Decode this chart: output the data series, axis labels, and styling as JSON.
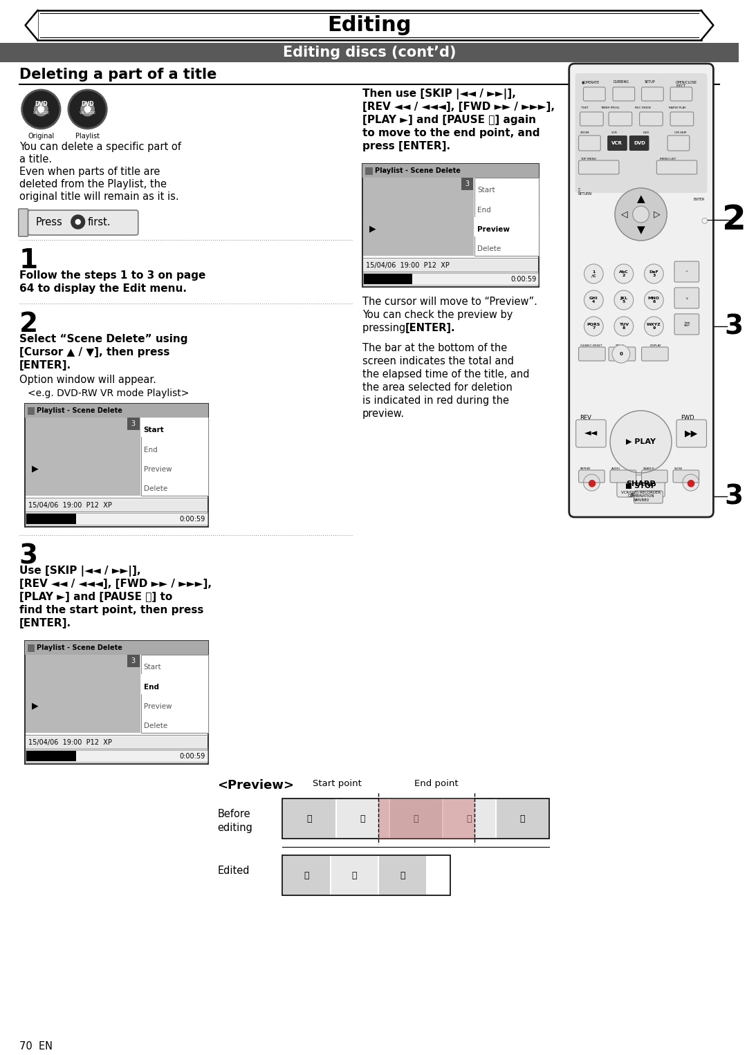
{
  "title": "Editing",
  "subtitle": "Editing discs (cont’d)",
  "section_title": "Deleting a part of a title",
  "bg_color": "#ffffff",
  "header_bg": "#595959",
  "header_text_color": "#ffffff",
  "body_text_color": "#000000",
  "intro_text_lines": [
    "You can delete a specific part of",
    "a title.",
    "Even when parts of title are",
    "deleted from the Playlist, the",
    "original title will remain as it is."
  ],
  "step1_bold_lines": [
    "Follow the steps 1 to 3 on page",
    "64 to display the Edit menu."
  ],
  "step2_bold_lines": [
    "Select “Scene Delete” using",
    "[Cursor ▲ / ▼], then press",
    "[ENTER]."
  ],
  "step2_normal": "Option window will appear.",
  "step2_eg": "<e.g. DVD-RW VR mode Playlist>",
  "step3_bold_lines": [
    "Use [SKIP |◄◄ / ►►|],",
    "[REV ◄◄ / ◄◄◄], [FWD ►► / ►►►],",
    "[PLAY ►] and [PAUSE ⏸] to",
    "find the start point, then press",
    "[ENTER]."
  ],
  "right_inst_bold_lines": [
    "Then use [SKIP |◄◄ / ►►|],",
    "[REV ◄◄ / ◄◄◄], [FWD ►► / ►►►],",
    "[PLAY ►] and [PAUSE ⏸] again",
    "to move to the end point, and",
    "press [ENTER]."
  ],
  "cursor_text_lines": [
    "The cursor will move to “Preview”.",
    "You can check the preview by",
    "pressing [ENTER]."
  ],
  "cursor_enter_bold": "[ENTER].",
  "bar_text_lines": [
    "The bar at the bottom of the",
    "screen indicates the total and",
    "the elapsed time of the title, and",
    "the area selected for deletion",
    "is indicated in red during the",
    "preview."
  ],
  "preview_label": "<Preview>",
  "before_label": "Before\nediting",
  "edited_label": "Edited",
  "start_point_label": "Start point",
  "end_point_label": "End point",
  "screen_title": "Playlist - Scene Delete",
  "screen_info": "15/04/06  19:00  P12  XP",
  "screen_time": "0:00:59",
  "menu_items_step2": [
    "Start",
    "End",
    "Preview",
    "Delete"
  ],
  "menu_items_step3": [
    "Start",
    "End",
    "Preview",
    "Delete"
  ],
  "menu_selected_step2": 0,
  "menu_selected_step3": 1,
  "page_number": "70  EN",
  "dotted_color": "#999999",
  "screen_bg": "#c0c0c0",
  "press_first_text": "Press",
  "press_first_after": "first.",
  "num2_right_label": "2",
  "num3a_right_label": "3",
  "num3b_right_label": "3"
}
